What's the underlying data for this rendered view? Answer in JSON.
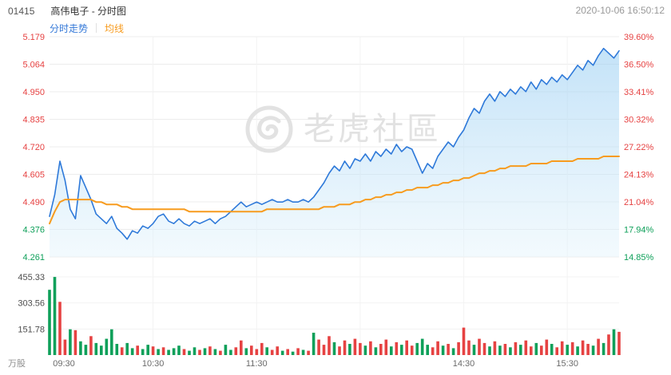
{
  "header": {
    "symbol": "01415",
    "name": "高伟电子 - 分时图",
    "timestamp": "2020-10-06 16:50:12"
  },
  "legend": {
    "price_label": "分时走势",
    "avg_label": "均线"
  },
  "watermark": {
    "text": "老虎社區"
  },
  "colors": {
    "price_line": "#2e79d9",
    "price_fill_top": "rgba(147,203,242,0.55)",
    "price_fill_bottom": "rgba(228,244,252,0.45)",
    "avg_line": "#f79b1e",
    "up": "#e64242",
    "down": "#0fa05a",
    "grid": "#ececec",
    "grid_light": "#f3f3f3",
    "axis_dark": "#4d4d4d",
    "axis_gray": "#8f8f8f",
    "time_text": "#6b6b6b",
    "watermark": "#e2e2e2",
    "legend_blue": "#3579d8"
  },
  "y_axis": {
    "price_labels": [
      "5.179",
      "5.064",
      "4.950",
      "4.835",
      "4.720",
      "4.605",
      "4.490",
      "4.376",
      "4.261"
    ],
    "price_label_colors": [
      "up",
      "up",
      "up",
      "up",
      "up",
      "up",
      "up",
      "down",
      "down"
    ],
    "pct_labels": [
      "39.60%",
      "36.50%",
      "33.41%",
      "30.32%",
      "27.22%",
      "24.13%",
      "21.04%",
      "17.94%",
      "14.85%"
    ],
    "price_min": 4.261,
    "price_max": 5.179
  },
  "volume_axis": {
    "labels": [
      "455.33",
      "303.56",
      "151.78"
    ],
    "unit": "万股",
    "max": 455.33
  },
  "x_axis": {
    "labels": [
      "09:30",
      "10:30",
      "11:30",
      "14:30",
      "15:30"
    ],
    "label_min": [
      0,
      60,
      120,
      240,
      300
    ],
    "grid_min": [
      60,
      120,
      180,
      240,
      300
    ],
    "total_min": 330
  },
  "chart_data": {
    "type": "line",
    "title": "01415 高伟电子 分时图 (2020-10-06)",
    "session": "09:30-12:00, 13:00-16:00 HK, lunch break compressed",
    "sample_interval_min": 3,
    "prev_close_implied": 3.71,
    "ylim_price": [
      4.261,
      5.179
    ],
    "ylim_pct": [
      "14.85%",
      "39.60%"
    ],
    "ylim_volume": [
      0,
      455.33
    ],
    "legend_position": "top-left",
    "grid": true,
    "series": [
      {
        "name": "分时走势",
        "color_key": "price_line",
        "values": [
          4.43,
          4.52,
          4.66,
          4.58,
          4.46,
          4.42,
          4.6,
          4.55,
          4.5,
          4.44,
          4.42,
          4.4,
          4.43,
          4.38,
          4.36,
          4.335,
          4.37,
          4.36,
          4.39,
          4.38,
          4.4,
          4.43,
          4.44,
          4.41,
          4.4,
          4.42,
          4.4,
          4.39,
          4.41,
          4.4,
          4.41,
          4.42,
          4.4,
          4.42,
          4.43,
          4.45,
          4.47,
          4.49,
          4.47,
          4.48,
          4.49,
          4.48,
          4.49,
          4.5,
          4.49,
          4.49,
          4.5,
          4.49,
          4.49,
          4.5,
          4.49,
          4.51,
          4.54,
          4.57,
          4.61,
          4.64,
          4.62,
          4.66,
          4.63,
          4.67,
          4.66,
          4.69,
          4.66,
          4.7,
          4.68,
          4.71,
          4.69,
          4.73,
          4.7,
          4.72,
          4.71,
          4.66,
          4.61,
          4.65,
          4.63,
          4.68,
          4.71,
          4.74,
          4.72,
          4.76,
          4.79,
          4.84,
          4.88,
          4.86,
          4.91,
          4.94,
          4.91,
          4.95,
          4.93,
          4.96,
          4.94,
          4.97,
          4.95,
          4.99,
          4.96,
          5.0,
          4.98,
          5.01,
          4.99,
          5.02,
          5.0,
          5.03,
          5.06,
          5.04,
          5.08,
          5.06,
          5.1,
          5.13,
          5.11,
          5.09,
          5.12
        ]
      },
      {
        "name": "均线",
        "color_key": "avg_line",
        "values": [
          4.4,
          4.45,
          4.49,
          4.5,
          4.5,
          4.5,
          4.5,
          4.5,
          4.5,
          4.49,
          4.49,
          4.48,
          4.48,
          4.48,
          4.47,
          4.47,
          4.46,
          4.46,
          4.46,
          4.46,
          4.46,
          4.46,
          4.46,
          4.46,
          4.46,
          4.46,
          4.46,
          4.45,
          4.45,
          4.45,
          4.45,
          4.45,
          4.45,
          4.45,
          4.45,
          4.45,
          4.45,
          4.45,
          4.45,
          4.45,
          4.45,
          4.45,
          4.46,
          4.46,
          4.46,
          4.46,
          4.46,
          4.46,
          4.46,
          4.46,
          4.46,
          4.46,
          4.46,
          4.47,
          4.47,
          4.47,
          4.48,
          4.48,
          4.48,
          4.49,
          4.49,
          4.5,
          4.5,
          4.51,
          4.51,
          4.52,
          4.52,
          4.53,
          4.53,
          4.54,
          4.54,
          4.55,
          4.55,
          4.55,
          4.56,
          4.56,
          4.57,
          4.57,
          4.58,
          4.58,
          4.59,
          4.59,
          4.6,
          4.61,
          4.61,
          4.62,
          4.62,
          4.63,
          4.63,
          4.64,
          4.64,
          4.64,
          4.64,
          4.65,
          4.65,
          4.65,
          4.65,
          4.66,
          4.66,
          4.66,
          4.66,
          4.66,
          4.67,
          4.67,
          4.67,
          4.67,
          4.67,
          4.68,
          4.68,
          4.68,
          4.68
        ]
      }
    ],
    "volume": {
      "name": "成交量",
      "unit": "万股",
      "values": [
        380,
        455,
        310,
        90,
        150,
        145,
        80,
        60,
        110,
        70,
        55,
        95,
        150,
        65,
        45,
        70,
        40,
        55,
        35,
        60,
        50,
        35,
        45,
        30,
        40,
        55,
        35,
        25,
        45,
        30,
        40,
        50,
        35,
        25,
        60,
        30,
        45,
        85,
        40,
        55,
        35,
        70,
        45,
        30,
        50,
        25,
        35,
        20,
        40,
        30,
        25,
        130,
        90,
        60,
        110,
        75,
        50,
        85,
        65,
        95,
        70,
        55,
        80,
        45,
        65,
        90,
        50,
        75,
        60,
        85,
        55,
        70,
        95,
        60,
        45,
        80,
        55,
        65,
        40,
        75,
        160,
        85,
        60,
        95,
        70,
        50,
        80,
        55,
        65,
        45,
        75,
        60,
        85,
        50,
        70,
        55,
        90,
        65,
        45,
        80,
        60,
        75,
        50,
        85,
        65,
        55,
        95,
        70,
        120,
        150,
        135
      ],
      "colors": "ggrrgrggrgggggrggrggrgrgggrggrgrgrggrrgrrrgrrgrgrgrgrrrgrrgrrgrgrrgrgrrgggrrgrgrrrgrrgrgrgrgrrgrrgrrgrgrrgrgrgr"
    }
  }
}
